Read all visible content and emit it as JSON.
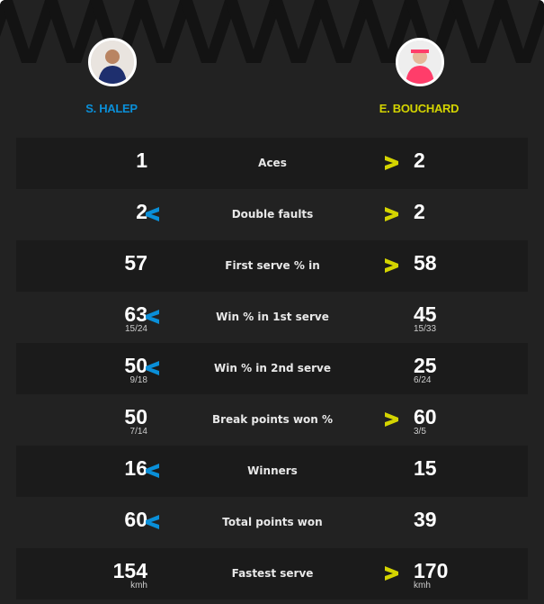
{
  "colors": {
    "player1": "#0a8fd8",
    "player2": "#d4d400",
    "background": "#222222",
    "row_dark": "#1b1b1b"
  },
  "players": [
    {
      "name": "S. HALEP",
      "avatar": "player-photo"
    },
    {
      "name": "E. BOUCHARD",
      "avatar": "player-photo"
    }
  ],
  "stats": [
    {
      "label": "Aces",
      "left": "1",
      "right": "2",
      "left_arrow": false,
      "right_arrow": true
    },
    {
      "label": "Double faults",
      "left": "2",
      "right": "2",
      "left_arrow": true,
      "right_arrow": true
    },
    {
      "label": "First serve % in",
      "left": "57",
      "right": "58",
      "left_arrow": false,
      "right_arrow": true
    },
    {
      "label": "Win % in 1st serve",
      "left": "63",
      "left_sub": "15/24",
      "right": "45",
      "right_sub": "15/33",
      "left_arrow": true,
      "right_arrow": false
    },
    {
      "label": "Win % in 2nd serve",
      "left": "50",
      "left_sub": "9/18",
      "right": "25",
      "right_sub": "6/24",
      "left_arrow": true,
      "right_arrow": false
    },
    {
      "label": "Break points won %",
      "left": "50",
      "left_sub": "7/14",
      "right": "60",
      "right_sub": "3/5",
      "left_arrow": false,
      "right_arrow": true
    },
    {
      "label": "Winners",
      "left": "16",
      "right": "15",
      "left_arrow": true,
      "right_arrow": false
    },
    {
      "label": "Total points won",
      "left": "60",
      "right": "39",
      "left_arrow": true,
      "right_arrow": false
    },
    {
      "label": "Fastest serve",
      "left": "154",
      "left_sub": "kmh",
      "right": "170",
      "right_sub": "kmh",
      "left_arrow": false,
      "right_arrow": true
    }
  ]
}
